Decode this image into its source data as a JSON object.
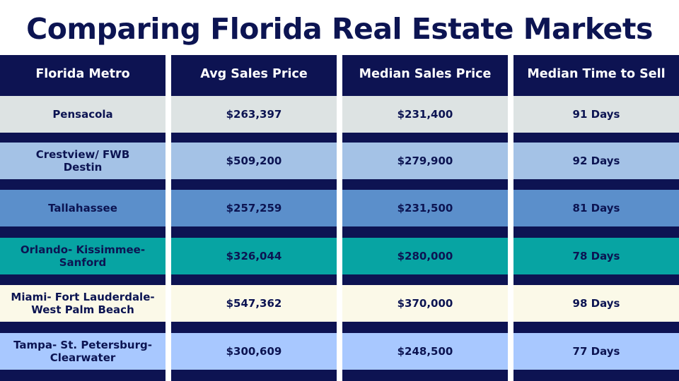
{
  "title": "Comparing Florida Real Estate Markets",
  "headers": [
    "Florida Metro",
    "Avg Sales Price",
    "Median Sales Price",
    "Median Time to Sell"
  ],
  "rows": [
    {
      "metro": "Pensacola",
      "avg": "$263,397",
      "median": "$231,400",
      "time": "91 Days",
      "color": "#dde3e3"
    },
    {
      "metro": "Crestview/ FWB Destin",
      "avg": "$509,200",
      "median": "$279,900",
      "time": "92 Days",
      "color": "#a4c2e6"
    },
    {
      "metro": "Tallahassee",
      "avg": "$257,259",
      "median": "$231,500",
      "time": "81 Days",
      "color": "#5b8fcb"
    },
    {
      "metro": "Orlando- Kissimmee- Sanford",
      "avg": "$326,044",
      "median": "$280,000",
      "time": "78 Days",
      "color": "#07a4a3"
    },
    {
      "metro": "Miami- Fort Lauderdale- West Palm Beach",
      "avg": "$547,362",
      "median": "$370,000",
      "time": "98 Days",
      "color": "#fbf9e8"
    },
    {
      "metro": "Tampa- St. Petersburg- Clearwater",
      "avg": "$300,609",
      "median": "$248,500",
      "time": "77 Days",
      "color": "#a8c8ff"
    }
  ],
  "colors": {
    "navy": "#0d1352",
    "text": "#0c1452"
  }
}
